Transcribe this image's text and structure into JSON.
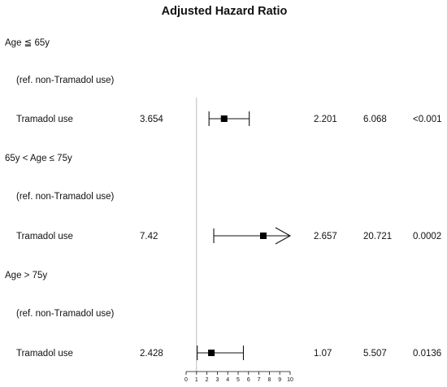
{
  "chart_data": {
    "type": "forest",
    "title": "Adjusted Hazard Ratio",
    "reference_line_value": 1,
    "xlim": [
      0,
      10
    ],
    "xticks": [
      "0",
      "1",
      "2",
      "3",
      "4",
      "5",
      "6",
      "7",
      "8",
      "9",
      "10"
    ],
    "groups": [
      {
        "label": "Age ≦ 65y",
        "reference": "(ref. non-Tramadol use)",
        "row": {
          "label": "Tramadol use",
          "hr": "3.654",
          "lower": "2.201",
          "upper": "6.068",
          "p": "<0.001",
          "hr_value": 3.654,
          "lower_value": 2.201,
          "upper_value": 6.068,
          "truncated_upper": false
        }
      },
      {
        "label": "65y < Age ≤ 75y",
        "reference": "(ref. non-Tramadol use)",
        "row": {
          "label": "Tramadol use",
          "hr": "7.42",
          "lower": "2.657",
          "upper": "20.721",
          "p": "0.0002",
          "hr_value": 7.42,
          "lower_value": 2.657,
          "upper_value": 20.721,
          "truncated_upper": true
        }
      },
      {
        "label": "Age > 75y",
        "reference": "(ref. non-Tramadol use)",
        "row": {
          "label": "Tramadol use",
          "hr": "2.428",
          "lower": "1.07",
          "upper": "5.507",
          "p": "0.0136",
          "hr_value": 2.428,
          "lower_value": 1.07,
          "upper_value": 5.507,
          "truncated_upper": false
        }
      }
    ]
  }
}
